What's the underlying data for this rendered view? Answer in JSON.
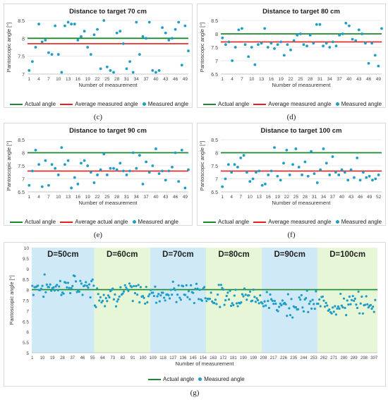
{
  "colors": {
    "actual": "#1a8a2e",
    "average": "#e8201c",
    "measured": "#1e9ec6",
    "band_blue": "#cfe9f7",
    "band_green": "#e8f6d8"
  },
  "chart_data": [
    {
      "type": "scatter",
      "title": "Distance to target 70 cm",
      "caption": "(c)",
      "xlabel": "Number of measurement",
      "ylabel": "Pantoscopic angle [°]",
      "ylim": [
        7,
        8.5
      ],
      "yticks": [
        "7",
        "7.5",
        "8",
        "8.5"
      ],
      "xticks": [
        "1",
        "4",
        "7",
        "10",
        "13",
        "16",
        "19",
        "22",
        "25",
        "28",
        "31",
        "34",
        "37",
        "40",
        "43",
        "46",
        "49"
      ],
      "xmax": 50,
      "lines": {
        "actual": 8.0,
        "average": 7.85
      },
      "legend": {
        "actual": "Actual angle",
        "average": "Average measured angle",
        "measured": "Measured angle"
      },
      "values": [
        7.1,
        7.35,
        7.75,
        8.4,
        7.9,
        7.95,
        7.6,
        7.55,
        8.35,
        7.55,
        7.05,
        8.35,
        8.45,
        8.4,
        8.4,
        7.95,
        8.05,
        8.2,
        7.75,
        7.55,
        8.1,
        8.25,
        7.15,
        8.5,
        7.2,
        7.1,
        7.05,
        8.15,
        8.2,
        7.85,
        7.15,
        7.35,
        7.05,
        8.45,
        7.55,
        8.05,
        8.0,
        8.45,
        7.1,
        7.05,
        7.1,
        8.3,
        8.15,
        7.95,
        8.0,
        8.25,
        8.45,
        7.25,
        8.35,
        7.65
      ]
    },
    {
      "type": "scatter",
      "title": "Distance to target 80 cm",
      "caption": "(d)",
      "xlabel": "Number of measurement",
      "ylabel": "Pantoscopic angle [°]",
      "ylim": [
        6.5,
        8.5
      ],
      "yticks": [
        "6.5",
        "7",
        "7.5",
        "8",
        "8.5"
      ],
      "xticks": [
        "1",
        "4",
        "7",
        "10",
        "13",
        "16",
        "19",
        "22",
        "25",
        "28",
        "31",
        "34",
        "37",
        "40",
        "43",
        "46",
        "49"
      ],
      "xmax": 50,
      "lines": {
        "actual": 8.0,
        "average": 7.7
      },
      "legend": {
        "actual": "Actual angle",
        "average": "Average measured angle",
        "measured": "Measured angle"
      },
      "values": [
        7.85,
        7.6,
        7.7,
        7.0,
        7.5,
        8.15,
        8.2,
        7.6,
        7.15,
        7.5,
        6.85,
        7.6,
        7.65,
        8.2,
        7.5,
        7.65,
        7.45,
        7.6,
        7.7,
        7.2,
        7.6,
        7.4,
        7.75,
        7.95,
        8.0,
        7.6,
        7.55,
        7.95,
        7.65,
        8.35,
        8.35,
        7.55,
        7.65,
        7.5,
        7.7,
        7.55,
        7.95,
        8.0,
        8.4,
        8.3,
        7.8,
        7.75,
        8.15,
        8.0,
        7.65,
        6.9,
        7.65,
        7.2,
        6.8,
        8.2
      ]
    },
    {
      "type": "scatter",
      "title": "Distance to target 90 cm",
      "caption": "(e)",
      "xlabel": "Number of measurement",
      "ylabel": "Pantoscopic angle [°]",
      "ylim": [
        6.5,
        8.5
      ],
      "yticks": [
        "6.5",
        "7",
        "7.5",
        "8",
        "8.5"
      ],
      "xticks": [
        "1",
        "4",
        "7",
        "10",
        "13",
        "16",
        "19",
        "22",
        "25",
        "28",
        "31",
        "34",
        "37",
        "40",
        "43",
        "46",
        "49"
      ],
      "xmax": 50,
      "lines": {
        "actual": 8.0,
        "average": 7.3
      },
      "legend": {
        "actual": "Actual angle",
        "average": "Average actual angle",
        "measured": "Measured angle"
      },
      "values": [
        6.75,
        7.3,
        8.1,
        7.55,
        6.7,
        7.7,
        6.75,
        7.55,
        7.4,
        7.15,
        8.2,
        7.55,
        7.7,
        6.65,
        7.05,
        6.8,
        7.6,
        7.7,
        7.5,
        7.25,
        6.85,
        7.15,
        7.35,
        7.95,
        7.15,
        7.4,
        7.4,
        7.35,
        7.6,
        7.3,
        7.15,
        7.3,
        8.0,
        7.4,
        7.9,
        6.8,
        7.65,
        7.25,
        7.5,
        8.15,
        7.2,
        7.3,
        6.95,
        7.3,
        7.45,
        8.0,
        6.9,
        8.1,
        6.65,
        7.35
      ]
    },
    {
      "type": "scatter",
      "title": "Distance to target 100 cm",
      "caption": "(f)",
      "xlabel": "Number of measurement",
      "ylabel": "Pantoscopic angle [°]",
      "ylim": [
        6.5,
        8.5
      ],
      "yticks": [
        "6.5",
        "7",
        "7.5",
        "8",
        "8.5"
      ],
      "xticks": [
        "1",
        "4",
        "7",
        "10",
        "13",
        "16",
        "19",
        "22",
        "25",
        "28",
        "31",
        "34",
        "37",
        "40",
        "43",
        "46",
        "49",
        "52"
      ],
      "xmax": 53,
      "lines": {
        "actual": 8.0,
        "average": 7.3
      },
      "legend": {
        "actual": "Actual angle",
        "average": "Average measured angle",
        "measured": "Measured angle"
      },
      "values": [
        6.7,
        7.0,
        7.55,
        7.25,
        7.55,
        7.45,
        7.8,
        7.9,
        7.25,
        6.9,
        7.0,
        7.25,
        7.3,
        6.75,
        6.8,
        7.15,
        7.3,
        8.2,
        7.1,
        6.95,
        7.6,
        8.1,
        7.15,
        7.55,
        8.15,
        7.45,
        7.15,
        7.65,
        7.1,
        8.05,
        7.2,
        6.85,
        7.35,
        8.15,
        7.6,
        7.15,
        7.85,
        7.25,
        7.15,
        7.35,
        7.25,
        6.95,
        7.35,
        7.05,
        7.8,
        6.95,
        7.25,
        7.05,
        7.1,
        6.95,
        7.0,
        7.15
      ]
    },
    {
      "type": "scatter",
      "title": "",
      "caption": "(g)",
      "xlabel": "Number of measurement",
      "ylabel": "Pantoscopic angle [°]",
      "ylim": [
        5,
        10
      ],
      "yticks": [
        "5",
        "5.5",
        "6",
        "6.5",
        "7",
        "7.5",
        "8",
        "8.5",
        "9",
        "9.5",
        "10"
      ],
      "xticks": [
        "1",
        "10",
        "19",
        "28",
        "37",
        "46",
        "55",
        "64",
        "73",
        "82",
        "91",
        "100",
        "109",
        "118",
        "127",
        "136",
        "145",
        "154",
        "163",
        "172",
        "181",
        "190",
        "199",
        "208",
        "217",
        "226",
        "235",
        "244",
        "253",
        "262",
        "271",
        "280",
        "289",
        "298",
        "307"
      ],
      "xmax": 310,
      "lines": {
        "actual": 8.0
      },
      "legend": {
        "actual": "Actual angle",
        "measured": "Measured angle"
      },
      "bands": [
        {
          "label": "D=50cm",
          "from": 0.5,
          "to": 56.5,
          "color": "blue"
        },
        {
          "label": "D=60cm",
          "from": 56.5,
          "to": 106.5,
          "color": "green"
        },
        {
          "label": "D=70cm",
          "from": 106.5,
          "to": 156.5,
          "color": "blue"
        },
        {
          "label": "D=80cm",
          "from": 156.5,
          "to": 206.5,
          "color": "green"
        },
        {
          "label": "D=90cm",
          "from": 206.5,
          "to": 256.5,
          "color": "blue"
        },
        {
          "label": "D=100cm",
          "from": 256.5,
          "to": 310,
          "color": "green"
        }
      ],
      "segments": [
        {
          "start": 1,
          "count": 56,
          "center": 8.15,
          "spread": 0.45
        },
        {
          "start": 57,
          "count": 50,
          "center": 7.8,
          "spread": 0.5
        },
        {
          "start": 107,
          "count": 50,
          "center": 7.85,
          "spread": 0.45
        },
        {
          "start": 157,
          "count": 50,
          "center": 7.7,
          "spread": 0.45
        },
        {
          "start": 207,
          "count": 50,
          "center": 7.35,
          "spread": 0.5
        },
        {
          "start": 257,
          "count": 52,
          "center": 7.3,
          "spread": 0.45
        }
      ]
    }
  ]
}
